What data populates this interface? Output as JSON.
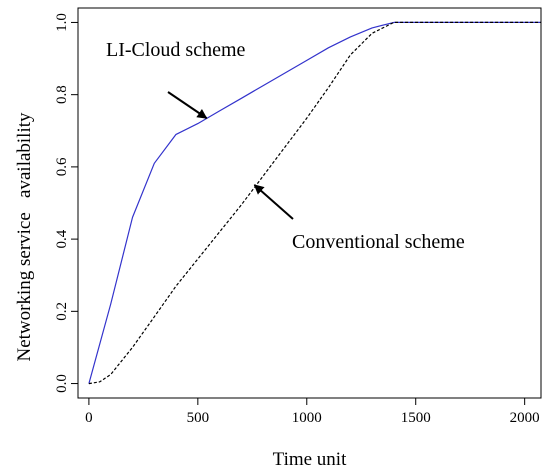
{
  "chart_data": {
    "type": "line",
    "title": "",
    "xlabel": "Time unit",
    "ylabel": "Networking service   availability",
    "xlim": [
      -50,
      2075
    ],
    "ylim": [
      -0.04,
      1.04
    ],
    "xticks": [
      0,
      500,
      1000,
      1500,
      2000
    ],
    "xtick_labels": [
      "0",
      "500",
      "1000",
      "1500",
      "2000"
    ],
    "yticks": [
      0.0,
      0.2,
      0.4,
      0.6,
      0.8,
      1.0
    ],
    "ytick_labels": [
      "0.0",
      "0.2",
      "0.4",
      "0.6",
      "0.8",
      "1.0"
    ],
    "grid": false,
    "series": [
      {
        "name": "LI-Cloud scheme",
        "color": "#3333cc",
        "style": "solid",
        "x": [
          0,
          100,
          200,
          300,
          400,
          500,
          600,
          700,
          800,
          900,
          1000,
          1100,
          1200,
          1300,
          1400,
          1500,
          1600,
          1700,
          1800,
          1900,
          2000,
          2075
        ],
        "y": [
          0.0,
          0.22,
          0.46,
          0.61,
          0.69,
          0.72,
          0.755,
          0.79,
          0.825,
          0.86,
          0.895,
          0.93,
          0.96,
          0.985,
          1.0,
          1.0,
          1.0,
          1.0,
          1.0,
          1.0,
          1.0,
          1.0
        ]
      },
      {
        "name": "Conventional scheme",
        "color": "#000000",
        "style": "dashed",
        "x": [
          0,
          50,
          100,
          200,
          300,
          400,
          500,
          600,
          700,
          800,
          900,
          1000,
          1100,
          1200,
          1300,
          1400,
          1500,
          1600,
          1700,
          1800,
          1900,
          2000,
          2075
        ],
        "y": [
          0.0,
          0.005,
          0.025,
          0.1,
          0.185,
          0.27,
          0.345,
          0.42,
          0.495,
          0.575,
          0.655,
          0.735,
          0.82,
          0.91,
          0.97,
          1.0,
          1.0,
          1.0,
          1.0,
          1.0,
          1.0,
          1.0,
          1.0
        ]
      }
    ],
    "annotations": [
      {
        "text": "LI-Cloud scheme",
        "points_to": {
          "x": 540,
          "y": 0.735
        }
      },
      {
        "text": "Conventional scheme",
        "points_to": {
          "x": 760,
          "y": 0.55
        }
      }
    ]
  }
}
